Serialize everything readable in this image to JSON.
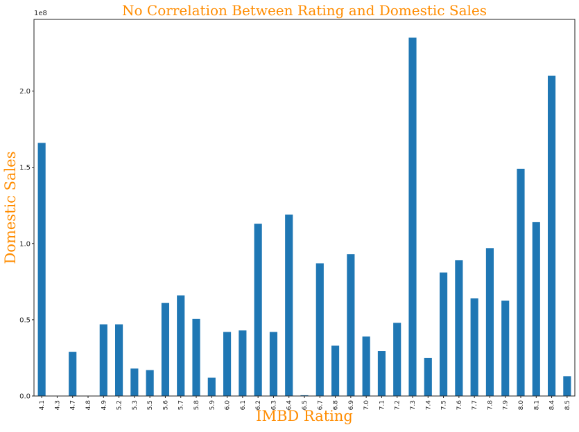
{
  "chart_data": {
    "type": "bar",
    "title": "No Correlation Between Rating and Domestic Sales",
    "xlabel": "IMBD Rating",
    "ylabel": "Domestic Sales",
    "y_scale_label": "1e8",
    "y_tick_labels": [
      "0.0",
      "0.5",
      "1.0",
      "1.5",
      "2.0"
    ],
    "y_ticks": [
      0,
      0.5,
      1.0,
      1.5,
      2.0
    ],
    "ylim": [
      0,
      2.47
    ],
    "grid": false,
    "bar_color": "#1f77b4",
    "title_color": "#ff8c00",
    "categories": [
      "4.1",
      "4.3",
      "4.7",
      "4.8",
      "4.9",
      "5.2",
      "5.3",
      "5.5",
      "5.6",
      "5.7",
      "5.8",
      "5.9",
      "6.0",
      "6.1",
      "6.2",
      "6.3",
      "6.4",
      "6.5",
      "6.7",
      "6.8",
      "6.9",
      "7.0",
      "7.1",
      "7.2",
      "7.3",
      "7.4",
      "7.5",
      "7.6",
      "7.7",
      "7.8",
      "7.9",
      "8.0",
      "8.1",
      "8.4",
      "8.5"
    ],
    "values": [
      1.66,
      0.0,
      0.29,
      0.0,
      0.47,
      0.47,
      0.18,
      0.17,
      0.61,
      0.66,
      0.505,
      0.12,
      0.42,
      0.43,
      1.13,
      0.42,
      1.19,
      0.005,
      0.87,
      0.33,
      0.93,
      0.39,
      0.295,
      0.48,
      2.35,
      0.25,
      0.81,
      0.89,
      0.64,
      0.97,
      0.625,
      1.49,
      1.14,
      2.1,
      0.13
    ]
  }
}
